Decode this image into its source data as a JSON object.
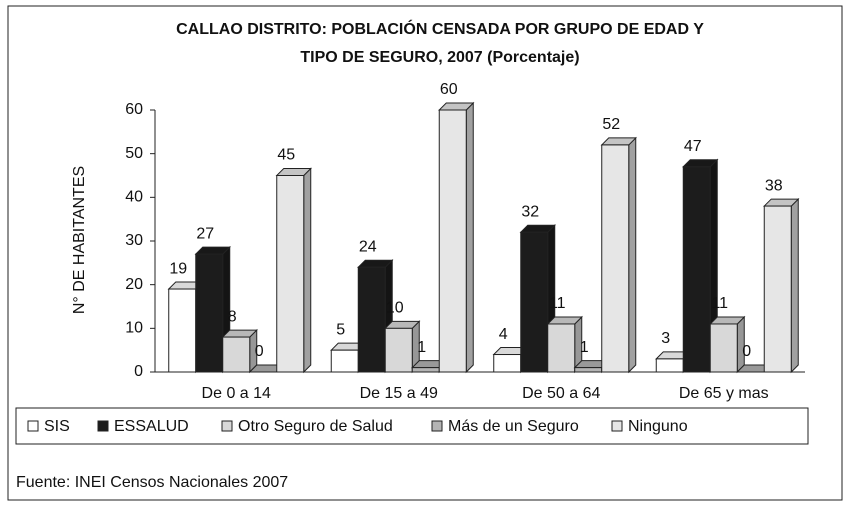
{
  "chart_data": {
    "type": "bar3d",
    "title": [
      "CALLAO DISTRITO: POBLACIÓN CENSADA POR GRUPO DE EDAD Y",
      "TIPO DE SEGURO, 2007 (Porcentaje)"
    ],
    "y_label": "N° DE HABITANTES",
    "source": "Fuente: INEI Censos Nacionales 2007",
    "categories": [
      "De 0 a 14",
      "De 15 a 49",
      "De 50 a 64",
      "De 65 y mas"
    ],
    "series": [
      {
        "name": "SIS",
        "color": "#ffffff",
        "values": [
          19,
          5,
          4,
          3
        ]
      },
      {
        "name": "ESSALUD",
        "color": "#1c1c1c",
        "values": [
          27,
          24,
          32,
          47
        ]
      },
      {
        "name": "Otro Seguro de Salud",
        "color": "#d8d8d8",
        "values": [
          8,
          10,
          11,
          11
        ]
      },
      {
        "name": "Más de un Seguro",
        "color": "#b4b4b4",
        "values": [
          0,
          1,
          1,
          0
        ]
      },
      {
        "name": "Ninguno",
        "color": "#e6e6e6",
        "values": [
          45,
          60,
          52,
          38
        ]
      }
    ],
    "ylim": [
      0,
      60
    ],
    "yticks": [
      0,
      10,
      20,
      30,
      40,
      50,
      60
    ],
    "grid": false
  }
}
